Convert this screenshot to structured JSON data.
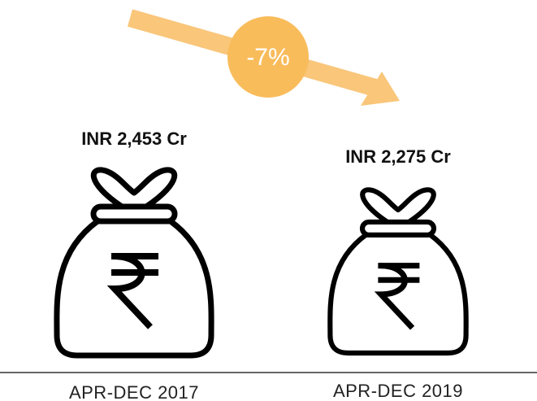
{
  "change": "-7%",
  "items": [
    {
      "value": "INR 2,453 Cr",
      "period": "APR-DEC 2017"
    },
    {
      "value": "INR 2,275 Cr",
      "period": "APR-DEC 2019"
    }
  ]
}
